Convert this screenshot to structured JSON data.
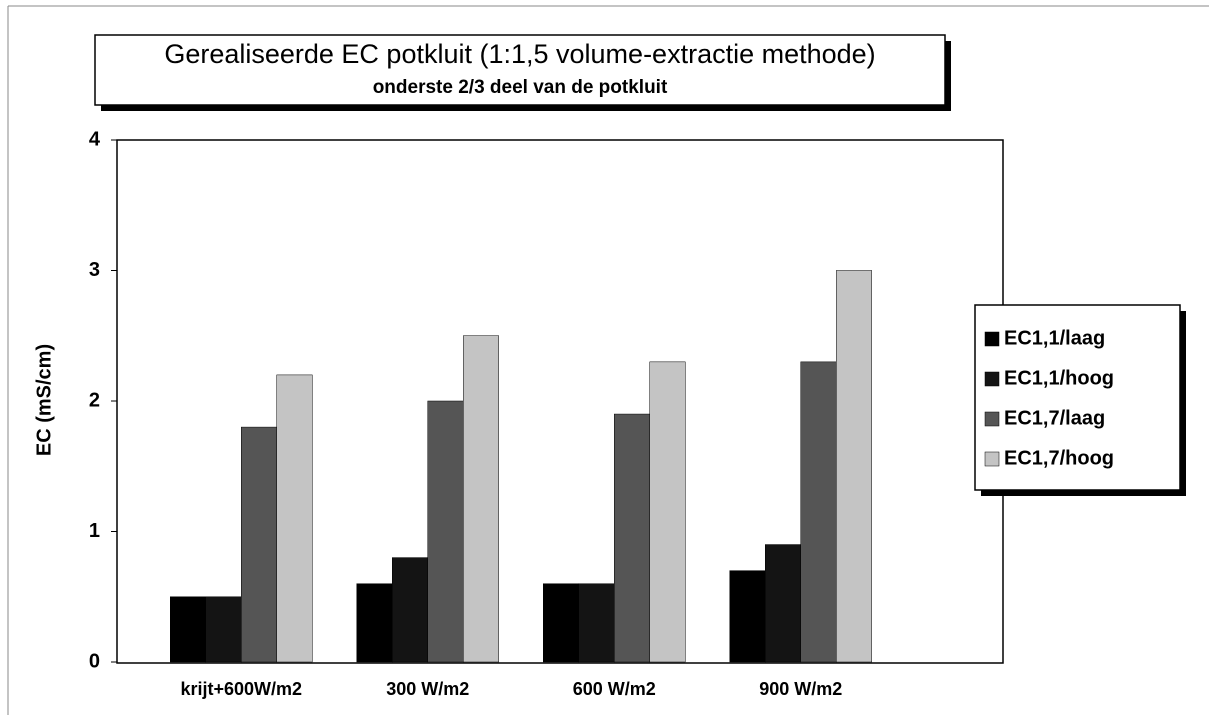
{
  "chart_data": {
    "type": "bar",
    "title": "Gerealiseerde EC potkluit (1:1,5 volume-extractie methode)",
    "subtitle": "onderste 2/3 deel van de potkluit",
    "y_label": "EC (mS/cm)",
    "categories": [
      "krijt+600W/m2",
      "300 W/m2",
      "600 W/m2",
      "900 W/m2"
    ],
    "series": [
      {
        "name": "EC1,1/laag",
        "color": "#000000",
        "values": [
          0.5,
          0.6,
          0.6,
          0.7
        ]
      },
      {
        "name": "EC1,1/hoog",
        "color": "#141414",
        "values": [
          0.5,
          0.8,
          0.6,
          0.9
        ]
      },
      {
        "name": "EC1,7/laag",
        "color": "#555555",
        "values": [
          1.8,
          2.0,
          1.9,
          2.3
        ]
      },
      {
        "name": "EC1,7/hoog",
        "color": "#c4c4c4",
        "values": [
          2.2,
          2.5,
          2.3,
          3.0
        ]
      }
    ],
    "ylim": [
      0,
      4
    ],
    "yticks": [
      0,
      1,
      2,
      3,
      4
    ],
    "grid": false
  }
}
